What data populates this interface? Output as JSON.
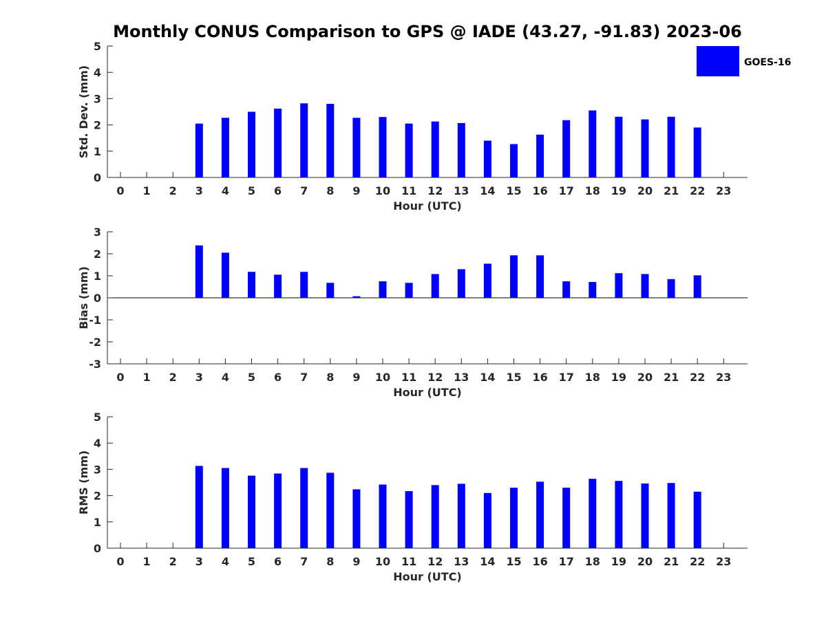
{
  "title": "Monthly CONUS Comparison to GPS @ IADE (43.27, -91.83) 2023-06",
  "legend_label": "GOES-16",
  "colors": {
    "bar": "#0000ff",
    "axis": "#262626"
  },
  "chart_data": [
    {
      "type": "bar",
      "series": [
        {
          "name": "GOES-16",
          "values": [
            null,
            null,
            null,
            2.05,
            2.27,
            2.5,
            2.62,
            2.82,
            2.8,
            2.27,
            2.3,
            2.05,
            2.13,
            2.07,
            1.4,
            1.27,
            1.63,
            2.18,
            2.55,
            2.31,
            2.21,
            2.31,
            1.9,
            null
          ]
        }
      ],
      "categories": [
        "0",
        "1",
        "2",
        "3",
        "4",
        "5",
        "6",
        "7",
        "8",
        "9",
        "10",
        "11",
        "12",
        "13",
        "14",
        "15",
        "16",
        "17",
        "18",
        "19",
        "20",
        "21",
        "22",
        "23"
      ],
      "xlabel": "Hour (UTC)",
      "ylabel": "Std. Dev. (mm)",
      "ylim": [
        0,
        5
      ],
      "yticks": [
        "0",
        "1",
        "2",
        "3",
        "4",
        "5"
      ]
    },
    {
      "type": "bar",
      "series": [
        {
          "name": "GOES-16",
          "values": [
            null,
            null,
            null,
            2.38,
            2.05,
            1.18,
            1.05,
            1.18,
            0.68,
            0.07,
            0.75,
            0.68,
            1.08,
            1.3,
            1.55,
            1.93,
            1.93,
            0.75,
            0.72,
            1.12,
            1.08,
            0.85,
            1.02,
            null
          ]
        }
      ],
      "categories": [
        "0",
        "1",
        "2",
        "3",
        "4",
        "5",
        "6",
        "7",
        "8",
        "9",
        "10",
        "11",
        "12",
        "13",
        "14",
        "15",
        "16",
        "17",
        "18",
        "19",
        "20",
        "21",
        "22",
        "23"
      ],
      "xlabel": "Hour (UTC)",
      "ylabel": "Bias (mm)",
      "ylim": [
        -3,
        3
      ],
      "yticks": [
        "-3",
        "-2",
        "-1",
        "0",
        "1",
        "2",
        "3"
      ]
    },
    {
      "type": "bar",
      "series": [
        {
          "name": "GOES-16",
          "values": [
            null,
            null,
            null,
            3.13,
            3.05,
            2.76,
            2.84,
            3.05,
            2.87,
            2.24,
            2.42,
            2.17,
            2.4,
            2.45,
            2.1,
            2.3,
            2.53,
            2.3,
            2.64,
            2.56,
            2.46,
            2.48,
            2.15,
            null
          ]
        }
      ],
      "categories": [
        "0",
        "1",
        "2",
        "3",
        "4",
        "5",
        "6",
        "7",
        "8",
        "9",
        "10",
        "11",
        "12",
        "13",
        "14",
        "15",
        "16",
        "17",
        "18",
        "19",
        "20",
        "21",
        "22",
        "23"
      ],
      "xlabel": "Hour (UTC)",
      "ylabel": "RMS (mm)",
      "ylim": [
        0,
        5
      ],
      "yticks": [
        "0",
        "1",
        "2",
        "3",
        "4",
        "5"
      ]
    }
  ]
}
